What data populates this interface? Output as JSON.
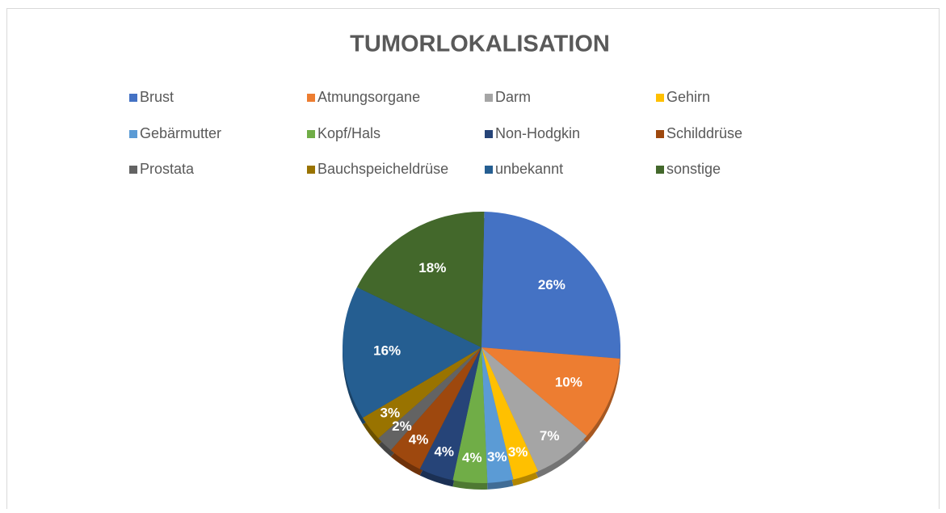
{
  "chart_data": {
    "type": "pie",
    "title": "TUMORLOKALISATION",
    "categories": [
      "Brust",
      "Atmungsorgane",
      "Darm",
      "Gehirn",
      "Gebärmutter",
      "Kopf/Hals",
      "Non-Hodgkin",
      "Schilddrüse",
      "Prostata",
      "Bauchspeicheldrüse",
      "unbekannt",
      "sonstige"
    ],
    "values": [
      26,
      10,
      7,
      3,
      3,
      4,
      4,
      4,
      2,
      3,
      16,
      18
    ],
    "value_labels": [
      "26%",
      "10%",
      "7%",
      "3%",
      "3%",
      "4%",
      "4%",
      "4%",
      "2%",
      "3%",
      "16%",
      "18%"
    ],
    "colors": [
      "#4472c4",
      "#ed7d31",
      "#a5a5a5",
      "#ffc000",
      "#5b9bd5",
      "#70ad47",
      "#264478",
      "#9e480e",
      "#636363",
      "#997300",
      "#255e91",
      "#43682b"
    ],
    "legend": "top"
  }
}
